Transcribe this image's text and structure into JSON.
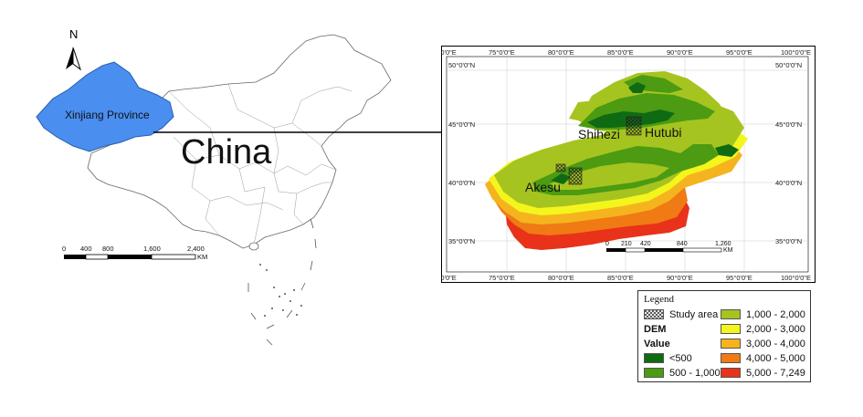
{
  "china_map": {
    "north_label": "N",
    "country_label": "China",
    "province_label": "Xinjiang Province",
    "scale_labels": [
      "0",
      "400",
      "800",
      "1,600",
      "2,400"
    ],
    "scale_unit": "KM",
    "province_color": "#4a8ef0"
  },
  "dem_map": {
    "top_lon_labels": [
      "70°0'0\"E",
      "75°0'0\"E",
      "80°0'0\"E",
      "85°0'0\"E",
      "90°0'0\"E",
      "95°0'0\"E",
      "100°0'0\"E"
    ],
    "bottom_lon_labels": [
      "70°0'0\"E",
      "75°0'0\"E",
      "80°0'0\"E",
      "85°0'0\"E",
      "90°0'0\"E",
      "95°0'0\"E",
      "100°0'0\"E"
    ],
    "left_lat_labels": [
      "50°0'0\"N",
      "45°0'0\"N",
      "40°0'0\"N",
      "35°0'0\"N"
    ],
    "right_lat_labels": [
      "50°0'0\"N",
      "45°0'0\"N",
      "40°0'0\"N",
      "35°0'0\"N"
    ],
    "place_labels": [
      "Shihezi",
      "Hutubi",
      "Akesu"
    ],
    "scale_labels": [
      "0",
      "210",
      "420",
      "840",
      "1,260"
    ],
    "scale_unit": "KM"
  },
  "legend": {
    "title": "Legend",
    "study_area": "Study area",
    "dem": "DEM",
    "value": "Value",
    "classes": [
      {
        "label": "<500",
        "color": "#0f6b13"
      },
      {
        "label": "500 - 1,000",
        "color": "#4c9b12"
      },
      {
        "label": "1,000 - 2,000",
        "color": "#a6c41f"
      },
      {
        "label": "2,000 - 3,000",
        "color": "#f5f51e"
      },
      {
        "label": "3,000 - 4,000",
        "color": "#f5b41e"
      },
      {
        "label": "4,000 - 5,000",
        "color": "#f07a14"
      },
      {
        "label": "5,000 - 7,249",
        "color": "#e8321a"
      }
    ]
  }
}
